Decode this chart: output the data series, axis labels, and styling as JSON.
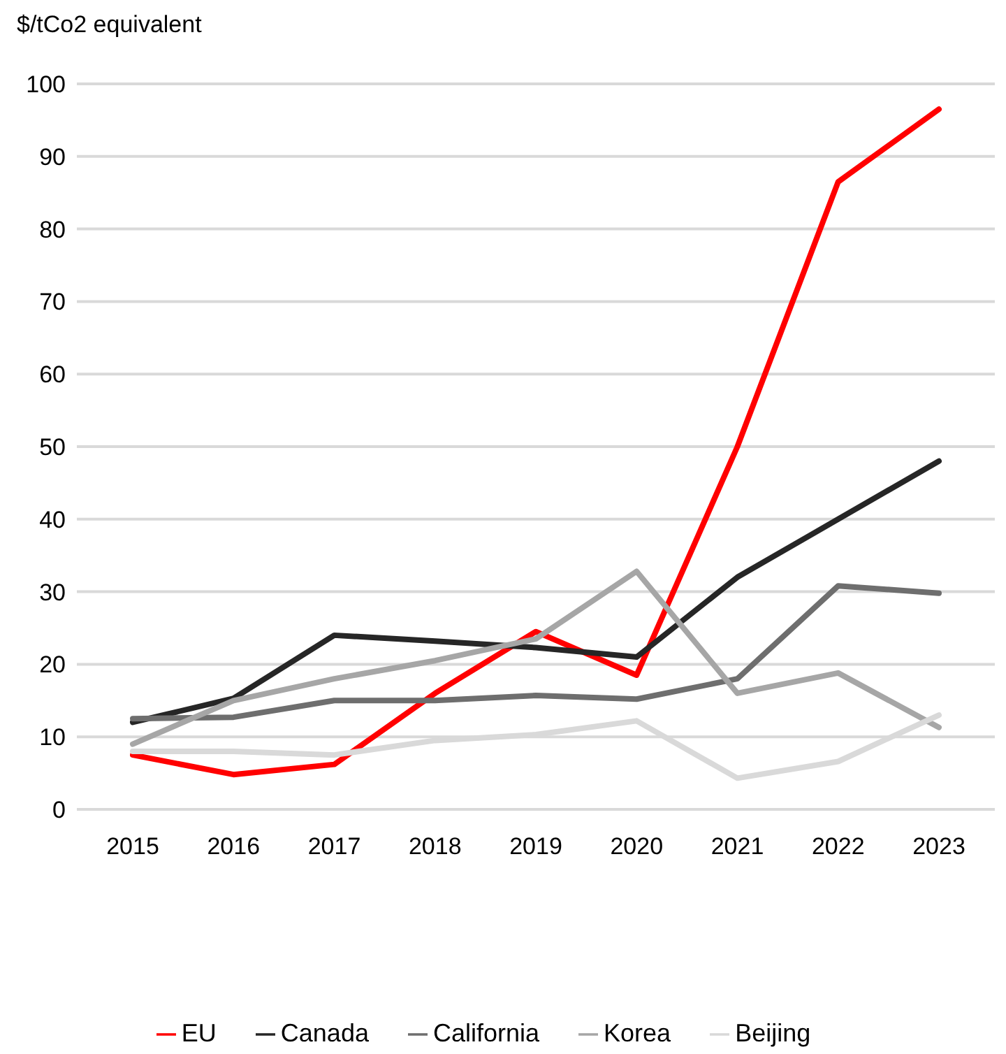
{
  "chart_data": {
    "type": "line",
    "ylabel": "$/tCo2 equivalent",
    "categories": [
      "2015",
      "2016",
      "2017",
      "2018",
      "2019",
      "2020",
      "2021",
      "2022",
      "2023"
    ],
    "series": [
      {
        "name": "EU",
        "color": "#ff0000",
        "values": [
          7.5,
          4.8,
          6.2,
          16,
          24.5,
          18.5,
          50,
          86.5,
          96.5
        ]
      },
      {
        "name": "Canada",
        "color": "#262626",
        "values": [
          12,
          15.3,
          24,
          23.2,
          22.3,
          21,
          32,
          40,
          48
        ]
      },
      {
        "name": "California",
        "color": "#6e6e6e",
        "values": [
          12.5,
          12.7,
          15,
          15,
          15.7,
          15.2,
          18,
          30.8,
          29.8
        ]
      },
      {
        "name": "Korea",
        "color": "#a6a6a6",
        "values": [
          9,
          15,
          18,
          20.5,
          23.5,
          32.8,
          16,
          18.8,
          11.3
        ]
      },
      {
        "name": "Beijing",
        "color": "#d9d9d9",
        "values": [
          8,
          8,
          7.5,
          9.5,
          10.3,
          12.2,
          4.3,
          6.6,
          13
        ]
      }
    ],
    "ylim": [
      0,
      100
    ],
    "yticks": [
      0,
      10,
      20,
      30,
      40,
      50,
      60,
      70,
      80,
      90,
      100
    ],
    "grid": "y",
    "legend": "bottom",
    "marker": "none",
    "line_style": "solid"
  }
}
